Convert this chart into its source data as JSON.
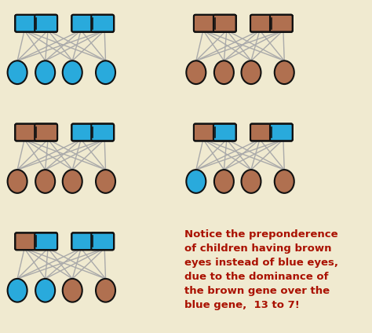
{
  "bg_color": "#f0ead0",
  "bar_outline": "#111111",
  "line_color": "#aaaaaa",
  "blue_color": "#29aadc",
  "brown_color": "#b07050",
  "text_color": "#aa1100",
  "eye_outline": "#111111",
  "panels": [
    {
      "bar1_h": [
        "blue",
        "blue"
      ],
      "bar2_h": [
        "blue",
        "blue"
      ],
      "children_c": [
        "blue",
        "blue",
        "blue",
        "blue"
      ]
    },
    {
      "bar1_h": [
        "brown",
        "brown"
      ],
      "bar2_h": [
        "brown",
        "brown"
      ],
      "children_c": [
        "brown",
        "brown",
        "brown",
        "brown"
      ]
    },
    {
      "bar1_h": [
        "brown",
        "brown"
      ],
      "bar2_h": [
        "blue",
        "blue"
      ],
      "children_c": [
        "brown",
        "brown",
        "brown",
        "brown"
      ]
    },
    {
      "bar1_h": [
        "brown",
        "blue"
      ],
      "bar2_h": [
        "brown",
        "blue"
      ],
      "children_c": [
        "blue",
        "brown",
        "brown",
        "brown"
      ]
    },
    {
      "bar1_h": [
        "brown",
        "blue"
      ],
      "bar2_h": [
        "blue",
        "blue"
      ],
      "children_c": [
        "blue",
        "blue",
        "brown",
        "brown"
      ]
    }
  ],
  "annotation": "Notice the preponderence\nof children having brown\neyes instead of blue eyes,\ndue to the dominance of\nthe brown gene over the\nblue gene,  13 to 7!",
  "annotation_fontsize": 9.5
}
